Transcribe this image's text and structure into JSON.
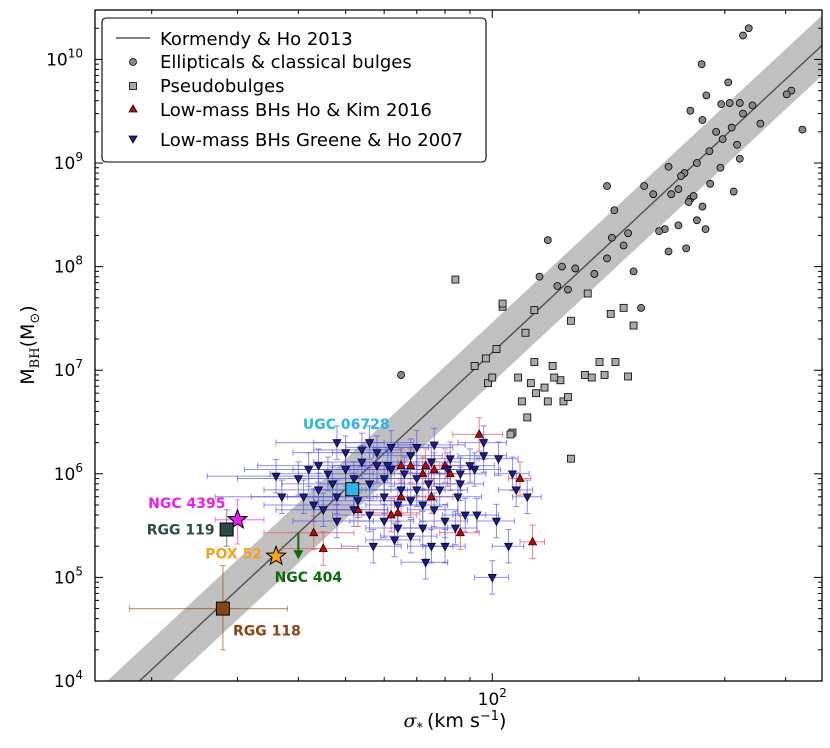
{
  "chart_data": {
    "type": "scatter",
    "xscale": "log",
    "yscale": "log",
    "xlabel_main": "σ",
    "xlabel_sub": "*",
    "xlabel_units": "(km s",
    "xlabel_units_exp": "−1",
    "xlabel_units_close": ")",
    "ylabel_main": "M",
    "ylabel_sub": "BH",
    "ylabel_units": "(M",
    "ylabel_units_sym": "⊙",
    "ylabel_units_close": ")",
    "xlim": [
      15.3,
      475
    ],
    "ylim": [
      10000,
      30000000000
    ],
    "x_ticks": [
      {
        "value": 100,
        "base": "10",
        "exp": "2"
      }
    ],
    "y_ticks": [
      {
        "value": 10000,
        "base": "10",
        "exp": "4"
      },
      {
        "value": 100000,
        "base": "10",
        "exp": "5"
      },
      {
        "value": 1000000,
        "base": "10",
        "exp": "6"
      },
      {
        "value": 10000000,
        "base": "10",
        "exp": "7"
      },
      {
        "value": 100000000,
        "base": "10",
        "exp": "8"
      },
      {
        "value": 1000000000,
        "base": "10",
        "exp": "9"
      },
      {
        "value": 10000000000,
        "base": "10",
        "exp": "10"
      }
    ],
    "relation": {
      "name": "Kormendy & Ho 2013",
      "color": "#555555",
      "band_color": "#c0c0c0",
      "pivot_sigma": 200,
      "log_mass_at_pivot": 8.49,
      "slope": 4.38,
      "scatter_dex": 0.29
    },
    "legend": [
      {
        "label": "Kormendy & Ho 2013",
        "marker": "line"
      },
      {
        "label": "Ellipticals & classical bulges",
        "marker": "circle"
      },
      {
        "label": "Pseudobulges",
        "marker": "square"
      },
      {
        "label": "Low-mass BHs Ho & Kim 2016",
        "marker": "triangle-up"
      },
      {
        "label": "Low-mass BHs Greene & Ho 2007",
        "marker": "triangle-down"
      }
    ],
    "series": [
      {
        "name": "Ellipticals & classical bulges",
        "marker": "circle",
        "color": "#888888",
        "points": [
          [
            336,
            20000000000.0
          ],
          [
            327,
            17000000000.0
          ],
          [
            269,
            9000000000.0
          ],
          [
            305,
            6000000000.0
          ],
          [
            411,
            5000000000.0
          ],
          [
            275,
            4500000000.0
          ],
          [
            295,
            3700000000.0
          ],
          [
            307,
            3800000000.0
          ],
          [
            322,
            3800000000.0
          ],
          [
            342,
            3600000000.0
          ],
          [
            327,
            3000000000.0
          ],
          [
            255,
            3200000000.0
          ],
          [
            270,
            2600000000.0
          ],
          [
            355,
            2400000000.0
          ],
          [
            402,
            4600000000.0
          ],
          [
            433,
            2100000000.0
          ],
          [
            310,
            2200000000.0
          ],
          [
            288,
            2000000000.0
          ],
          [
            297,
            1700000000.0
          ],
          [
            318,
            1500000000.0
          ],
          [
            279,
            1300000000.0
          ],
          [
            263,
            1000000000.0
          ],
          [
            248,
            800000000.0
          ],
          [
            244,
            750000000.0
          ],
          [
            230,
            920000000.0
          ],
          [
            233,
            500000000.0
          ],
          [
            255,
            450000000.0
          ],
          [
            259,
            480000000.0
          ],
          [
            253,
            420000000.0
          ],
          [
            280,
            630000000.0
          ],
          [
            322,
            1100000000.0
          ],
          [
            294,
            900000000.0
          ],
          [
            270,
            380000000.0
          ],
          [
            263,
            280000000.0
          ],
          [
            241,
            560000000.0
          ],
          [
            214,
            500000000.0
          ],
          [
            205,
            600000000.0
          ],
          [
            172,
            600000000.0
          ],
          [
            178,
            350000000.0
          ],
          [
            176,
            190000000.0
          ],
          [
            172,
            120000000.0
          ],
          [
            162,
            85000000.0
          ],
          [
            148,
            96000000.0
          ],
          [
            143,
            60000000.0
          ],
          [
            139,
            100000000.0
          ],
          [
            130,
            180000000.0
          ],
          [
            125,
            80000000.0
          ],
          [
            136,
            65000000.0
          ],
          [
            190,
            210000000.0
          ],
          [
            186,
            160000000.0
          ],
          [
            230,
            140000000.0
          ],
          [
            241,
            250000000.0
          ],
          [
            250,
            150000000.0
          ],
          [
            226,
            230000000.0
          ],
          [
            220,
            220000000.0
          ],
          [
            195,
            90000000.0
          ],
          [
            202,
            40000000.0
          ],
          [
            274,
            230000000.0
          ],
          [
            313,
            530000000.0
          ],
          [
            65,
            9000000.0
          ]
        ]
      },
      {
        "name": "Pseudobulges",
        "marker": "square",
        "color": "#aaaaaa",
        "points": [
          [
            84,
            75000000.0
          ],
          [
            105,
            41000000.0
          ],
          [
            105,
            44000000.0
          ],
          [
            117,
            23000000.0
          ],
          [
            122,
            38000000.0
          ],
          [
            145,
            30000000.0
          ],
          [
            157,
            55000000.0
          ],
          [
            175,
            35000000.0
          ],
          [
            186,
            40000000.0
          ],
          [
            195,
            27000000.0
          ],
          [
            166,
            12000000.0
          ],
          [
            155,
            9000000.0
          ],
          [
            170,
            9000000.0
          ],
          [
            179,
            12000000.0
          ],
          [
            190,
            8700000.0
          ],
          [
            133,
            11000000.0
          ],
          [
            138,
            8000000.0
          ],
          [
            134,
            8500000.0
          ],
          [
            128,
            6800000.0
          ],
          [
            123,
            6000000.0
          ],
          [
            115,
            5000000.0
          ],
          [
            110,
            2500000.0
          ],
          [
            109,
            2400000.0
          ],
          [
            130,
            5000000.0
          ],
          [
            140,
            5000000.0
          ],
          [
            143,
            5500000.0
          ],
          [
            118,
            3500000.0
          ],
          [
            160,
            8500000.0
          ],
          [
            98,
            7500000.0
          ],
          [
            100,
            8500000.0
          ],
          [
            97,
            13000000.0
          ],
          [
            102,
            16000000.0
          ],
          [
            122,
            12000000.0
          ],
          [
            113,
            8500000.0
          ],
          [
            120,
            7500000.0
          ],
          [
            145,
            1400000.0
          ],
          [
            92,
            11000000.0
          ]
        ]
      },
      {
        "name": "Low-mass BHs Ho & Kim 2016",
        "marker": "triangle-up",
        "color": "#cc0000",
        "points": [
          [
            80,
            1200000.0,
            10
          ],
          [
            68,
            1200000.0,
            10
          ],
          [
            72,
            1000000.0,
            9
          ],
          [
            76,
            1100000.0,
            10
          ],
          [
            94,
            2400000.0,
            11
          ],
          [
            82,
            1000000.0,
            8
          ],
          [
            65,
            600000.0,
            8
          ],
          [
            62,
            400000.0,
            8
          ],
          [
            53,
            450000.0,
            8
          ],
          [
            64,
            420000.0,
            7
          ],
          [
            114,
            900000.0,
            6
          ],
          [
            121,
            220000.0,
            7
          ],
          [
            86,
            270000.0,
            8
          ],
          [
            43,
            270000.0,
            9
          ],
          [
            45,
            190000.0,
            8
          ],
          [
            65,
            1200000.0,
            9
          ],
          [
            73,
            1200000.0,
            9
          ],
          [
            75,
            600000.0,
            8
          ]
        ]
      },
      {
        "name": "Low-mass BHs Greene & Ho 2007",
        "marker": "triangle-down",
        "color": "#1a1a99",
        "points": [
          [
            48,
            2000000.0,
            12
          ],
          [
            56,
            2000000.0,
            13
          ],
          [
            62,
            1800000.0,
            12
          ],
          [
            70,
            1800000.0,
            13
          ],
          [
            76,
            1900000.0,
            12
          ],
          [
            82,
            1400000.0,
            12
          ],
          [
            86,
            1000000.0,
            11
          ],
          [
            92,
            1100000.0,
            12
          ],
          [
            96,
            1500000.0,
            11
          ],
          [
            103,
            1400000.0,
            10
          ],
          [
            110,
            1000000.0,
            9
          ],
          [
            112,
            700000.0,
            9
          ],
          [
            118,
            600000.0,
            8
          ],
          [
            100,
            100000.0,
            8
          ],
          [
            108,
            200000.0,
            8
          ],
          [
            102,
            350000.0,
            9
          ],
          [
            93,
            400000.0,
            10
          ],
          [
            85,
            600000.0,
            10
          ],
          [
            78,
            700000.0,
            11
          ],
          [
            74,
            800000.0,
            11
          ],
          [
            70,
            900000.0,
            12
          ],
          [
            66,
            1000000.0,
            12
          ],
          [
            62,
            1100000.0,
            11
          ],
          [
            58,
            1200000.0,
            11
          ],
          [
            54,
            1300000.0,
            11
          ],
          [
            50,
            1100000.0,
            11
          ],
          [
            46,
            1000000.0,
            11
          ],
          [
            42,
            1100000.0,
            11
          ],
          [
            40,
            900000.0,
            10
          ],
          [
            36,
            950000.0,
            10
          ],
          [
            37,
            600000.0,
            10
          ],
          [
            44,
            700000.0,
            10
          ],
          [
            48,
            600000.0,
            10
          ],
          [
            52,
            700000.0,
            10
          ],
          [
            56,
            800000.0,
            10
          ],
          [
            60,
            600000.0,
            10
          ],
          [
            64,
            500000.0,
            9
          ],
          [
            68,
            550000.0,
            9
          ],
          [
            72,
            500000.0,
            9
          ],
          [
            76,
            450000.0,
            9
          ],
          [
            80,
            350000.0,
            9
          ],
          [
            84,
            300000.0,
            9
          ],
          [
            88,
            400000.0,
            9
          ],
          [
            72,
            300000.0,
            9
          ],
          [
            68,
            250000.0,
            9
          ],
          [
            64,
            300000.0,
            9
          ],
          [
            60,
            350000.0,
            9
          ],
          [
            56,
            400000.0,
            9
          ],
          [
            52,
            450000.0,
            9
          ],
          [
            48,
            350000.0,
            9
          ],
          [
            45,
            450000.0,
            9
          ],
          [
            57,
            200000.0,
            8
          ],
          [
            63,
            230000.0,
            8
          ],
          [
            75,
            200000.0,
            8
          ],
          [
            80,
            200000.0,
            8
          ],
          [
            73,
            140000.0,
            8
          ],
          [
            61,
            1200000.0,
            11
          ],
          [
            68,
            1500000.0,
            11
          ],
          [
            75,
            1300000.0,
            11
          ],
          [
            58,
            1600000.0,
            11
          ],
          [
            44,
            1200000.0,
            11
          ],
          [
            50,
            1600000.0,
            11
          ],
          [
            54,
            1700000.0,
            11
          ],
          [
            65,
            700000.0,
            10
          ],
          [
            70,
            700000.0,
            10
          ],
          [
            53,
            550000.0,
            10
          ],
          [
            47,
            800000.0,
            10
          ],
          [
            43,
            500000.0,
            9
          ],
          [
            41,
            600000.0,
            9
          ],
          [
            86,
            800000.0,
            10
          ],
          [
            81,
            1100000.0,
            11
          ],
          [
            90,
            1200000.0,
            11
          ],
          [
            96,
            2000000.0,
            11
          ],
          [
            52,
            900000.0,
            10
          ],
          [
            60,
            900000.0,
            10
          ]
        ]
      }
    ],
    "highlights": [
      {
        "name": "UGC 06728",
        "sigma": 51.6,
        "mass": 710000.0,
        "marker": "square",
        "fill": "#29b5e8",
        "label_color": "#29b5e8",
        "xerr": 5,
        "yerr_lo": 0,
        "yerr_hi": 0,
        "label_dx": -6,
        "label_dy": -60,
        "anchor": "middle"
      },
      {
        "name": "NGC 4395",
        "sigma": 30,
        "mass": 360000.0,
        "marker": "star",
        "fill": "#ee1cee",
        "label_color": "#ee1cee",
        "xerr_lo": 3,
        "xerr_hi": 4,
        "yerr_lo": 150000.0,
        "yerr_hi": 200000.0,
        "label_dx": -12,
        "label_dy": -12,
        "anchor": "end"
      },
      {
        "name": "RGG 119",
        "sigma": 28.5,
        "mass": 290000.0,
        "marker": "square",
        "fill": "#2d4a4a",
        "label_color": "#2d4a4a",
        "xerr_lo": 0,
        "xerr_hi": 0,
        "yerr_lo": 90000.0,
        "yerr_hi": 160000.0,
        "label_dx": -12,
        "label_dy": 5,
        "anchor": "end"
      },
      {
        "name": "POX 52",
        "sigma": 36,
        "mass": 160000.0,
        "marker": "star",
        "fill": "#f5a31a",
        "label_color": "#f5a31a",
        "xerr_lo": 0,
        "xerr_hi": 0,
        "yerr_lo": 0,
        "yerr_hi": 0,
        "label_dx": -14,
        "label_dy": 2,
        "anchor": "end"
      },
      {
        "name": "NGC 404",
        "sigma": 40,
        "mass": 200000.0,
        "marker": "arrow-down",
        "fill": "#0a6b0a",
        "label_color": "#0a6b0a",
        "label_dx": 10,
        "label_dy": 36,
        "anchor": "middle"
      },
      {
        "name": "RGG 118",
        "sigma": 28,
        "mass": 50000.0,
        "marker": "square",
        "fill": "#8b4513",
        "label_color": "#8b4513",
        "xerr_lo": 10,
        "xerr_hi": 10,
        "yerr_lo": 30000.0,
        "yerr_hi": 80000.0,
        "label_dx": 44,
        "label_dy": 27,
        "anchor": "middle"
      }
    ]
  }
}
